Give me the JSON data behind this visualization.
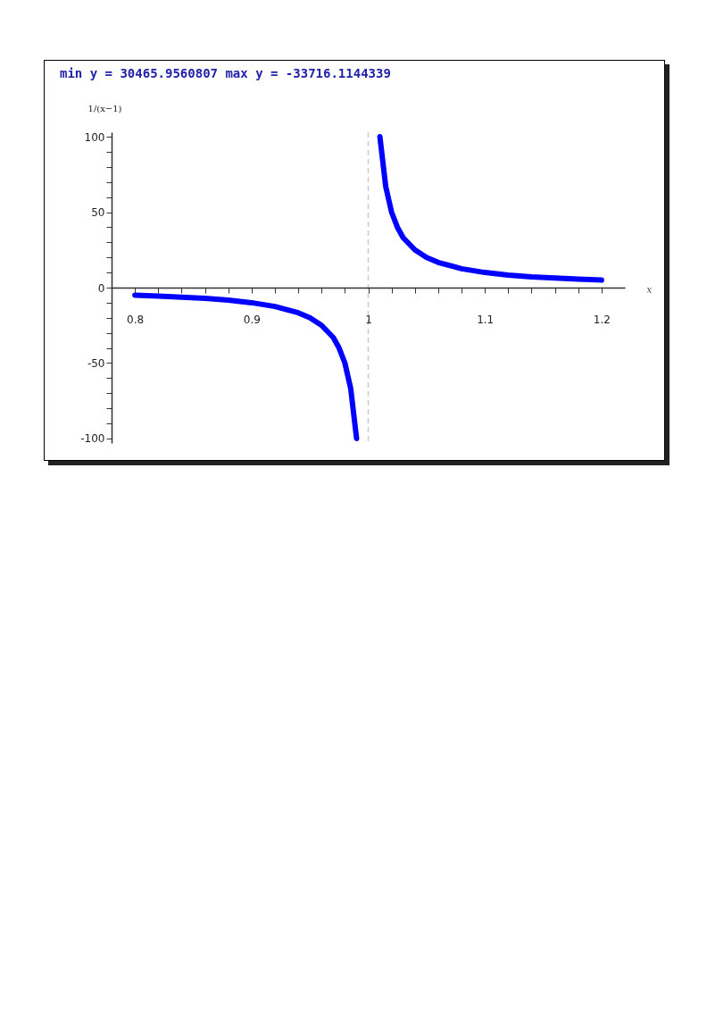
{
  "chart_data": {
    "type": "line",
    "title": "min y = 30465.9560807   max y = -33716.1144339",
    "xlabel": "x",
    "ylabel": "1/(x−1)",
    "series": [
      {
        "color": "#0000ff",
        "x": [
          0.8,
          0.82,
          0.84,
          0.86,
          0.88,
          0.9,
          0.92,
          0.94,
          0.95,
          0.96,
          0.97,
          0.975,
          0.98,
          0.985,
          0.99
        ],
        "values": [
          -5,
          -5.6,
          -6.3,
          -7.1,
          -8.3,
          -10,
          -12.5,
          -16.7,
          -20,
          -25,
          -33,
          -40,
          -50,
          -67,
          -100
        ]
      },
      {
        "color": "#0000ff",
        "x": [
          1.01,
          1.015,
          1.02,
          1.025,
          1.03,
          1.04,
          1.05,
          1.06,
          1.08,
          1.1,
          1.12,
          1.14,
          1.16,
          1.18,
          1.2
        ],
        "values": [
          100,
          67,
          50,
          40,
          33,
          25,
          20,
          16.7,
          12.5,
          10,
          8.3,
          7.1,
          6.3,
          5.6,
          5
        ]
      }
    ],
    "xlim": [
      0.78,
      1.22
    ],
    "ylim": [
      -103,
      103
    ],
    "xticks": [
      0.8,
      {
        "value": 0.82,
        "label": null
      },
      {
        "value": 0.84,
        "label": null
      },
      {
        "value": 0.86,
        "label": null
      },
      {
        "value": 0.88,
        "label": null
      },
      0.9,
      {
        "value": 0.92,
        "label": null
      },
      {
        "value": 0.94,
        "label": null
      },
      {
        "value": 0.96,
        "label": null
      },
      {
        "value": 0.98,
        "label": null
      },
      1,
      {
        "value": 1.02,
        "label": null
      },
      {
        "value": 1.04,
        "label": null
      },
      {
        "value": 1.06,
        "label": null
      },
      {
        "value": 1.08,
        "label": null
      },
      1.1,
      {
        "value": 1.12,
        "label": null
      },
      {
        "value": 1.14,
        "label": null
      },
      {
        "value": 1.16,
        "label": null
      },
      {
        "value": 1.18,
        "label": null
      },
      1.2
    ],
    "yticks": [
      -100,
      {
        "value": -90,
        "label": null
      },
      {
        "value": -80,
        "label": null
      },
      {
        "value": -70,
        "label": null
      },
      {
        "value": -60,
        "label": null
      },
      -50,
      {
        "value": -40,
        "label": null
      },
      {
        "value": -30,
        "label": null
      },
      {
        "value": -20,
        "label": null
      },
      {
        "value": -10,
        "label": null
      },
      0,
      {
        "value": 10,
        "label": null
      },
      {
        "value": 20,
        "label": null
      },
      {
        "value": 30,
        "label": null
      },
      {
        "value": 40,
        "label": null
      },
      50,
      {
        "value": 60,
        "label": null
      },
      {
        "value": 70,
        "label": null
      },
      {
        "value": 80,
        "label": null
      },
      {
        "value": 90,
        "label": null
      },
      100
    ],
    "ref_lines": [
      {
        "axis": "x",
        "value": 1,
        "color": "#cccccc",
        "line_style": "dashed"
      }
    ],
    "grid": false,
    "marker": "none",
    "line_style": "solid"
  }
}
